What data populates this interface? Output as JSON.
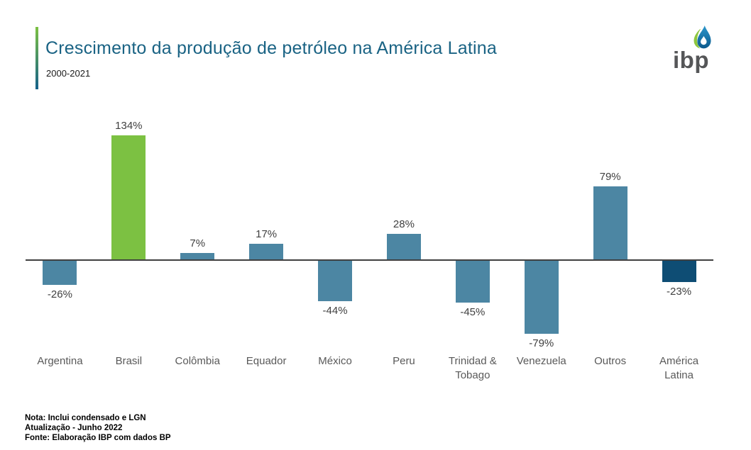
{
  "header": {
    "title": "Crescimento da produção de petróleo na América Latina",
    "subtitle": "2000-2021",
    "title_color": "#1A6384",
    "accent_top_color": "#7CC142",
    "accent_bottom_color": "#15618A"
  },
  "logo": {
    "text": "ibp",
    "text_color": "#555658",
    "leaf_color": "#8DC63F",
    "drop_color_top": "#2B96CC",
    "drop_color_bottom": "#0C5A8C"
  },
  "chart_data": {
    "type": "bar",
    "title": "Crescimento da produção de petróleo na América Latina",
    "subtitle": "2000-2021",
    "categories": [
      "Argentina",
      "Brasil",
      "Colômbia",
      "Equador",
      "México",
      "Peru",
      "Trinidad & Tobago",
      "Venezuela",
      "Outros",
      "América Latina"
    ],
    "values": [
      -26,
      134,
      7,
      17,
      -44,
      28,
      -45,
      -79,
      79,
      -23
    ],
    "labels": [
      "-26%",
      "134%",
      "7%",
      "17%",
      "-44%",
      "28%",
      "-45%",
      "-79%",
      "79%",
      "-23%"
    ],
    "bar_colors": [
      "#4C86A3",
      "#7CC142",
      "#4C86A3",
      "#4C86A3",
      "#4C86A3",
      "#4C86A3",
      "#4C86A3",
      "#4C86A3",
      "#4C86A3",
      "#0E4D74"
    ],
    "xlabel": "",
    "ylabel": "",
    "ylim": [
      -100,
      150
    ],
    "grid": false,
    "legend": false,
    "baseline_color": "#404040",
    "value_label_color": "#404040",
    "category_label_color": "#595959"
  },
  "footer": {
    "note": "Nota: Inclui condensado e LGN",
    "update": "Atualização - Junho 2022",
    "source": "Fonte: Elaboração IBP com dados BP"
  }
}
